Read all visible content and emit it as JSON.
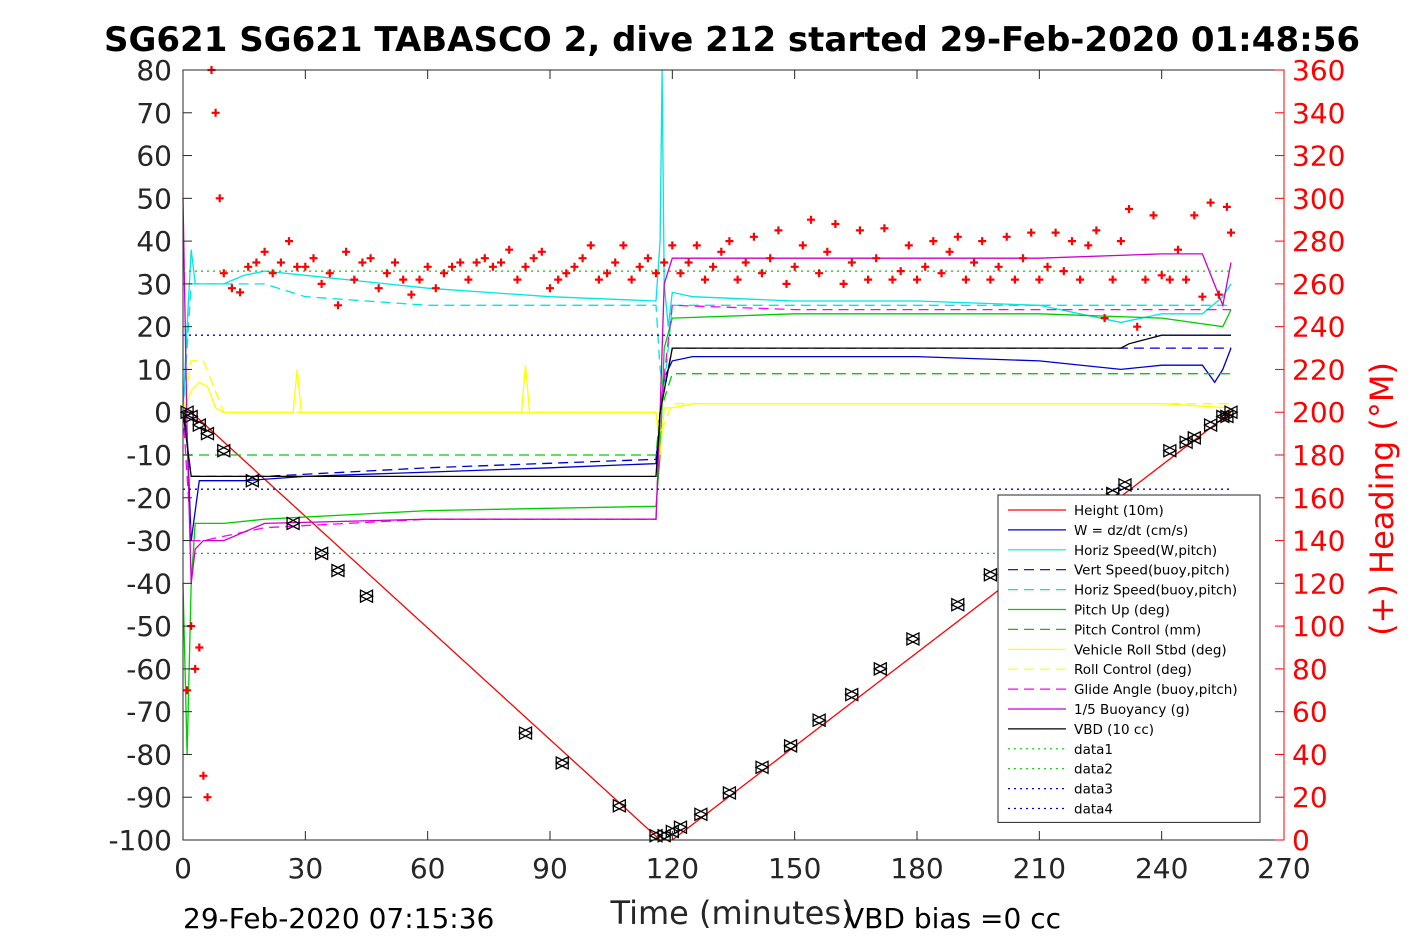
{
  "chart_data": {
    "type": "line",
    "title": "SG621 SG621 TABASCO 2, dive 212 started 29-Feb-2020 01:48:56",
    "xlabel": "Time (minutes)",
    "ylabel_right": "(+) Heading (°M)",
    "xlim": [
      0,
      270
    ],
    "ylim": [
      -100,
      80
    ],
    "ylim_right": [
      0,
      360
    ],
    "x_ticks": [
      "0",
      "30",
      "60",
      "90",
      "120",
      "150",
      "180",
      "210",
      "240",
      "270"
    ],
    "y_ticks": [
      "80",
      "70",
      "60",
      "50",
      "40",
      "30",
      "20",
      "10",
      "0",
      "-10",
      "-20",
      "-30",
      "-40",
      "-50",
      "-60",
      "-70",
      "-80",
      "-90",
      "-100"
    ],
    "y_ticks_right": [
      "360",
      "340",
      "320",
      "300",
      "280",
      "260",
      "240",
      "220",
      "200",
      "180",
      "160",
      "140",
      "120",
      "100",
      "80",
      "60",
      "40",
      "20",
      "0"
    ],
    "footer_left": "29-Feb-2020 07:15:36",
    "footer_right": "VBD bias =0 cc",
    "legend_position": "bottom-right",
    "legend": [
      {
        "label": "Height (10m)",
        "color": "#ff0000",
        "style": "solid"
      },
      {
        "label": "W = dz/dt (cm/s)",
        "color": "#0000cc",
        "style": "solid"
      },
      {
        "label": "Horiz Speed(W,pitch)",
        "color": "#00e5e5",
        "style": "solid"
      },
      {
        "label": "Vert Speed(buoy,pitch)",
        "color": "#0000cc",
        "style": "dashed"
      },
      {
        "label": "Horiz Speed(buoy,pitch)",
        "color": "#00e5e5",
        "style": "dashed"
      },
      {
        "label": "Pitch Up (deg)",
        "color": "#00cc00",
        "style": "solid"
      },
      {
        "label": "Pitch Control (mm)",
        "color": "#00cc00",
        "style": "dashed"
      },
      {
        "label": "Vehicle Roll Stbd (deg)",
        "color": "#ffff00",
        "style": "solid"
      },
      {
        "label": "Roll Control (deg)",
        "color": "#ffff00",
        "style": "dashed"
      },
      {
        "label": "Glide Angle (buoy,pitch)",
        "color": "#ff00ff",
        "style": "dashed"
      },
      {
        "label": "1/5 Buoyancy (g)",
        "color": "#cc00cc",
        "style": "solid"
      },
      {
        "label": "VBD (10 cc)",
        "color": "#000000",
        "style": "solid"
      },
      {
        "label": "data1",
        "color": "#00cc00",
        "style": "dotted"
      },
      {
        "label": "data2",
        "color": "#00cc00",
        "style": "dotted"
      },
      {
        "label": "data3",
        "color": "#0000cc",
        "style": "dotted"
      },
      {
        "label": "data4",
        "color": "#0000cc",
        "style": "dotted"
      }
    ],
    "series": [
      {
        "name": "Height (10m)",
        "color": "#ff0000",
        "dash": "",
        "x": [
          0,
          2,
          117,
          120,
          257
        ],
        "y": [
          0,
          0,
          -100,
          -100,
          0
        ]
      },
      {
        "name": "W = dz/dt (cm/s)",
        "color": "#0000cc",
        "dash": "",
        "x": [
          0,
          1,
          2,
          4,
          8,
          15,
          30,
          60,
          90,
          116,
          117,
          118,
          120,
          125,
          150,
          180,
          210,
          230,
          240,
          250,
          253,
          255,
          257
        ],
        "y": [
          0,
          -5,
          -30,
          -16,
          -16,
          -16,
          -15,
          -14,
          -13,
          -12,
          0,
          8,
          12,
          13,
          13,
          13,
          12,
          10,
          11,
          11,
          7,
          10,
          15
        ]
      },
      {
        "name": "Horiz Speed(W,pitch)",
        "color": "#00e5e5",
        "dash": "",
        "x": [
          0,
          1,
          2,
          3,
          5,
          10,
          15,
          20,
          30,
          60,
          90,
          116,
          117,
          117.5,
          118,
          119,
          120,
          125,
          150,
          180,
          210,
          230,
          240,
          250,
          255,
          257
        ],
        "y": [
          0,
          20,
          38,
          30,
          30,
          30,
          32,
          33,
          32,
          29,
          27,
          26,
          40,
          80,
          30,
          20,
          28,
          27,
          26,
          26,
          25,
          21,
          23,
          23,
          27,
          30
        ]
      },
      {
        "name": "Vert Speed(buoy,pitch)",
        "color": "#0000cc",
        "dash": "10,6",
        "x": [
          0,
          2,
          5,
          20,
          60,
          116,
          117,
          120,
          150,
          210,
          240,
          257
        ],
        "y": [
          0,
          -15,
          -15,
          -15,
          -13,
          -11,
          0,
          15,
          15,
          15,
          15,
          15
        ]
      },
      {
        "name": "Horiz Speed(buoy,pitch)",
        "color": "#00e5e5",
        "dash": "10,6",
        "x": [
          0,
          2,
          5,
          20,
          30,
          60,
          116,
          117,
          118,
          120,
          150,
          210,
          240,
          257
        ],
        "y": [
          0,
          30,
          30,
          30,
          27,
          25,
          25,
          10,
          5,
          25,
          25,
          25,
          25,
          25
        ]
      },
      {
        "name": "Pitch Up (deg)",
        "color": "#00cc00",
        "dash": "",
        "x": [
          0,
          1,
          2,
          3,
          5,
          10,
          20,
          60,
          116,
          117,
          118,
          120,
          150,
          210,
          240,
          255,
          257
        ],
        "y": [
          -40,
          -80,
          -40,
          -26,
          -26,
          -26,
          -25,
          -23,
          -22,
          -10,
          15,
          22,
          23,
          23,
          22,
          20,
          24
        ]
      },
      {
        "name": "Pitch Control (mm)",
        "color": "#00cc00",
        "dash": "10,6",
        "x": [
          0,
          2,
          116,
          117,
          120,
          257
        ],
        "y": [
          -10,
          -10,
          -10,
          0,
          9,
          9
        ]
      },
      {
        "name": "Vehicle Roll Stbd (deg)",
        "color": "#ffff00",
        "dash": "",
        "x": [
          0,
          2,
          4,
          6,
          8,
          10,
          20,
          27,
          28,
          29,
          40,
          60,
          83,
          84,
          85,
          100,
          116,
          117,
          118,
          120,
          125,
          150,
          200,
          230,
          240,
          257
        ],
        "y": [
          0,
          5,
          7,
          6,
          1,
          0,
          0,
          0,
          10,
          0,
          0,
          0,
          0,
          11,
          0,
          0,
          0,
          -10,
          1,
          1,
          2,
          2,
          2,
          2,
          2,
          1
        ]
      },
      {
        "name": "Roll Control (deg)",
        "color": "#ffff00",
        "dash": "10,6",
        "x": [
          0,
          2,
          5,
          10,
          40,
          116,
          117,
          120,
          150,
          200,
          240,
          257
        ],
        "y": [
          0,
          12,
          12,
          0,
          0,
          0,
          -5,
          2,
          2,
          2,
          2,
          2
        ]
      },
      {
        "name": "Glide Angle (buoy,pitch)",
        "color": "#ff00ff",
        "dash": "10,6",
        "x": [
          0,
          2,
          5,
          20,
          60,
          116,
          117,
          120,
          150,
          210,
          240,
          257
        ],
        "y": [
          0,
          -30,
          -30,
          -27,
          -25,
          -25,
          0,
          25,
          24,
          24,
          24,
          24
        ]
      },
      {
        "name": "1/5 Buoyancy (g)",
        "color": "#cc00cc",
        "dash": "",
        "x": [
          0,
          1,
          2,
          3,
          5,
          10,
          20,
          60,
          116,
          117,
          118,
          120,
          150,
          210,
          240,
          250,
          255,
          257
        ],
        "y": [
          50,
          -5,
          -40,
          -32,
          -30,
          -30,
          -26,
          -25,
          -25,
          0,
          30,
          36,
          36,
          36,
          37,
          37,
          25,
          35
        ]
      },
      {
        "name": "VBD (10 cc)",
        "color": "#000000",
        "dash": "",
        "x": [
          0,
          2,
          5,
          116,
          117,
          120,
          210,
          230,
          232,
          240,
          257
        ],
        "y": [
          0,
          -15,
          -15,
          -15,
          0,
          15,
          15,
          15,
          16,
          18,
          18
        ]
      },
      {
        "name": "data1",
        "color": "#00cc00",
        "dash": "2,4",
        "x": [
          0,
          257
        ],
        "y": [
          33,
          33
        ]
      },
      {
        "name": "data2",
        "color": "#00cc00",
        "dash": "2,4",
        "x": [
          0,
          257
        ],
        "y": [
          -33,
          -33
        ]
      },
      {
        "name": "data3",
        "color": "#0000cc",
        "dash": "2,4",
        "x": [
          0,
          257
        ],
        "y": [
          18,
          18
        ]
      },
      {
        "name": "data4",
        "color": "#0000cc",
        "dash": "2,4",
        "x": [
          0,
          257
        ],
        "y": [
          -18,
          -18
        ]
      }
    ],
    "heading": {
      "name": "(+) Heading (°M)",
      "color": "#ff0000",
      "marker": "+",
      "axis": "right",
      "x": [
        1,
        2,
        3,
        4,
        5,
        6,
        7,
        8,
        9,
        10,
        12,
        14,
        16,
        18,
        20,
        22,
        24,
        26,
        28,
        30,
        32,
        34,
        36,
        38,
        40,
        42,
        44,
        46,
        48,
        50,
        52,
        54,
        56,
        58,
        60,
        62,
        64,
        66,
        68,
        70,
        72,
        74,
        76,
        78,
        80,
        82,
        84,
        86,
        88,
        90,
        92,
        94,
        96,
        98,
        100,
        102,
        104,
        106,
        108,
        110,
        112,
        114,
        116,
        118,
        120,
        122,
        124,
        126,
        128,
        130,
        132,
        134,
        136,
        138,
        140,
        142,
        144,
        146,
        148,
        150,
        152,
        154,
        156,
        158,
        160,
        162,
        164,
        166,
        168,
        170,
        172,
        174,
        176,
        178,
        180,
        182,
        184,
        186,
        188,
        190,
        192,
        194,
        196,
        198,
        200,
        202,
        204,
        206,
        208,
        210,
        212,
        214,
        216,
        218,
        220,
        222,
        224,
        226,
        228,
        230,
        232,
        234,
        236,
        238,
        240,
        242,
        244,
        246,
        248,
        250,
        252,
        254,
        256,
        257
      ],
      "y": [
        70,
        100,
        80,
        90,
        30,
        20,
        360,
        340,
        300,
        265,
        258,
        256,
        268,
        270,
        275,
        265,
        270,
        280,
        268,
        268,
        272,
        260,
        265,
        250,
        275,
        262,
        270,
        272,
        258,
        265,
        270,
        262,
        255,
        262,
        268,
        258,
        265,
        268,
        270,
        262,
        270,
        272,
        268,
        270,
        276,
        262,
        268,
        272,
        275,
        258,
        262,
        265,
        268,
        272,
        278,
        262,
        265,
        270,
        278,
        262,
        268,
        272,
        265,
        270,
        278,
        265,
        270,
        278,
        262,
        268,
        275,
        280,
        262,
        270,
        282,
        265,
        272,
        285,
        260,
        268,
        278,
        290,
        265,
        275,
        288,
        260,
        270,
        285,
        262,
        272,
        286,
        262,
        266,
        278,
        262,
        268,
        280,
        265,
        275,
        282,
        262,
        270,
        280,
        262,
        268,
        282,
        262,
        272,
        284,
        262,
        268,
        284,
        266,
        280,
        262,
        278,
        285,
        244,
        262,
        280,
        295,
        240,
        262,
        292,
        264,
        262,
        276,
        262,
        292,
        254,
        298,
        255,
        296,
        284
      ]
    },
    "markers": {
      "name": "Height (10m) samples",
      "x": [
        1,
        2,
        4,
        6,
        10,
        17,
        27,
        34,
        38,
        45,
        84,
        93,
        107,
        116,
        118,
        120,
        122,
        127,
        134,
        142,
        149,
        156,
        164,
        171,
        179,
        190,
        198,
        228,
        231,
        242,
        246,
        248,
        252,
        255,
        256,
        257
      ],
      "y": [
        0,
        -1,
        -3,
        -5,
        -9,
        -16,
        -26,
        -33,
        -37,
        -43,
        -75,
        -82,
        -92,
        -99,
        -99,
        -98,
        -97,
        -94,
        -89,
        -83,
        -78,
        -72,
        -66,
        -60,
        -53,
        -45,
        -38,
        -19,
        -17,
        -9,
        -7,
        -6,
        -3,
        -1,
        -1,
        0
      ]
    }
  }
}
